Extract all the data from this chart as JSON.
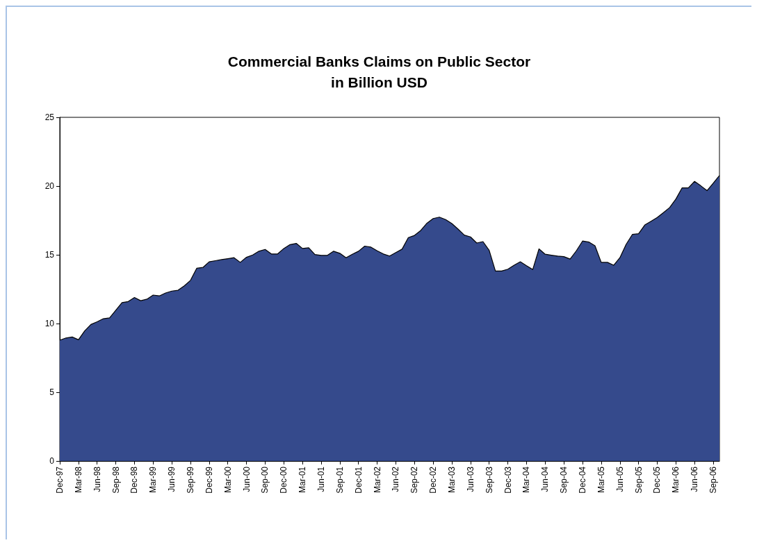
{
  "chart_data": {
    "type": "area",
    "title": "Commercial Banks Claims on Public Sector\nin Billion USD",
    "categories": [
      "Dec-97",
      null,
      null,
      "Mar-98",
      null,
      null,
      "Jun-98",
      null,
      null,
      "Sep-98",
      null,
      null,
      "Dec-98",
      null,
      null,
      "Mar-99",
      null,
      null,
      "Jun-99",
      null,
      null,
      "Sep-99",
      null,
      null,
      "Dec-99",
      null,
      null,
      "Mar-00",
      null,
      null,
      "Jun-00",
      null,
      null,
      "Sep-00",
      null,
      null,
      "Dec-00",
      null,
      null,
      "Mar-01",
      null,
      null,
      "Jun-01",
      null,
      null,
      "Sep-01",
      null,
      null,
      "Dec-01",
      null,
      null,
      "Mar-02",
      null,
      null,
      "Jun-02",
      null,
      null,
      "Sep-02",
      null,
      null,
      "Dec-02",
      null,
      null,
      "Mar-03",
      null,
      null,
      "Jun-03",
      null,
      null,
      "Sep-03",
      null,
      null,
      "Dec-03",
      null,
      null,
      "Mar-04",
      null,
      null,
      "Jun-04",
      null,
      null,
      "Sep-04",
      null,
      null,
      "Dec-04",
      null,
      null,
      "Mar-05",
      null,
      null,
      "Jun-05",
      null,
      null,
      "Sep-05",
      null,
      null,
      "Dec-05",
      null,
      null,
      "Mar-06",
      null,
      null,
      "Jun-06",
      null,
      null,
      "Sep-06",
      null
    ],
    "series": [
      {
        "color": "#354a8c",
        "values": [
          8.79,
          8.95,
          9.02,
          8.82,
          9.46,
          9.93,
          10.13,
          10.35,
          10.41,
          10.97,
          11.52,
          11.6,
          11.89,
          11.66,
          11.77,
          12.07,
          12.01,
          12.22,
          12.36,
          12.42,
          12.74,
          13.14,
          14.02,
          14.08,
          14.49,
          14.57,
          14.65,
          14.72,
          14.79,
          14.45,
          14.82,
          14.99,
          15.26,
          15.39,
          15.06,
          15.06,
          15.46,
          15.74,
          15.83,
          15.46,
          15.51,
          15.02,
          14.96,
          14.96,
          15.26,
          15.11,
          14.79,
          15.04,
          15.26,
          15.63,
          15.56,
          15.29,
          15.06,
          14.91,
          15.16,
          15.41,
          16.25,
          16.41,
          16.77,
          17.3,
          17.64,
          17.74,
          17.56,
          17.27,
          16.87,
          16.43,
          16.3,
          15.86,
          15.96,
          15.32,
          13.82,
          13.82,
          13.95,
          14.24,
          14.49,
          14.2,
          13.93,
          15.43,
          15.04,
          14.97,
          14.91,
          14.87,
          14.69,
          15.29,
          16.0,
          15.93,
          15.66,
          14.45,
          14.45,
          14.24,
          14.79,
          15.76,
          16.48,
          16.53,
          17.17,
          17.44,
          17.71,
          18.07,
          18.44,
          19.06,
          19.87,
          19.87,
          20.34,
          20.02,
          19.67,
          20.21,
          20.77
        ]
      }
    ],
    "ylim": [
      0,
      25
    ],
    "yticks": [
      0,
      5,
      10,
      15,
      20,
      25
    ],
    "grid": false
  }
}
